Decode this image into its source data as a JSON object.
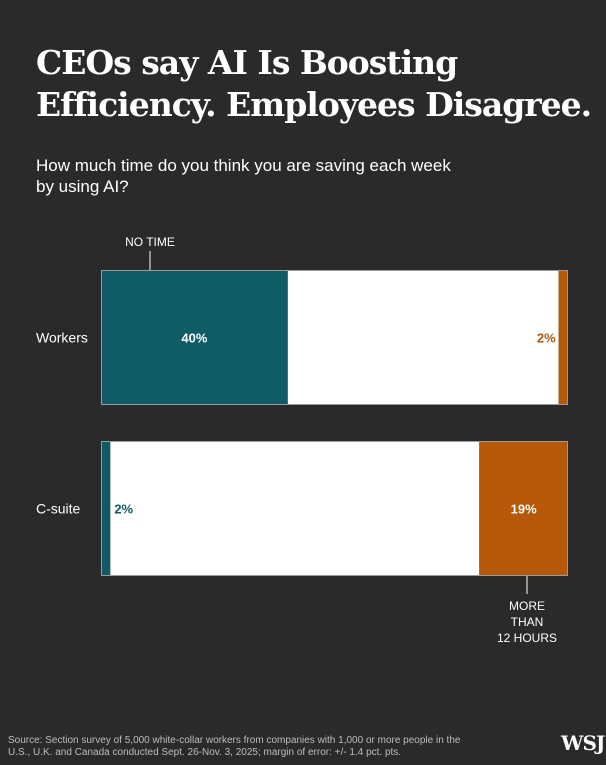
{
  "headline": "CEOs say AI Is Boosting Efficiency. Employees Disagree.",
  "chart_data": {
    "type": "bar",
    "title": "How much time do you think you are saving each week by using AI?",
    "categories": [
      "Workers",
      "C-suite"
    ],
    "series": [
      {
        "name": "NO TIME",
        "values": [
          40,
          2
        ],
        "labels": [
          "40%",
          "2%"
        ],
        "color": "#0f5b66"
      },
      {
        "values": [
          58,
          79
        ]
      },
      {
        "name": "MORE THAN 12 HOURS",
        "values": [
          2,
          19
        ],
        "labels": [
          "2%",
          "19%"
        ],
        "color": "#b5580a"
      }
    ],
    "stacked": true,
    "xlim": [
      0,
      100
    ],
    "grid": false,
    "background_segment_color": "#ffffff"
  },
  "annotations": {
    "no_time": "NO TIME",
    "more_than": [
      "MORE",
      "THAN",
      "12 HOURS"
    ]
  },
  "source": "Source: Section survey of 5,000 white-collar workers from companies with 1,000 or more people in the U.S., U.K. and Canada conducted Sept. 26-Nov. 3, 2025; margin of error: +/- 1.4 pct. pts.",
  "logo": "WSJ",
  "colors": {
    "background": "#2a2a2a",
    "teal": "#0f5b66",
    "orange": "#b5580a",
    "text": "#ffffff"
  }
}
